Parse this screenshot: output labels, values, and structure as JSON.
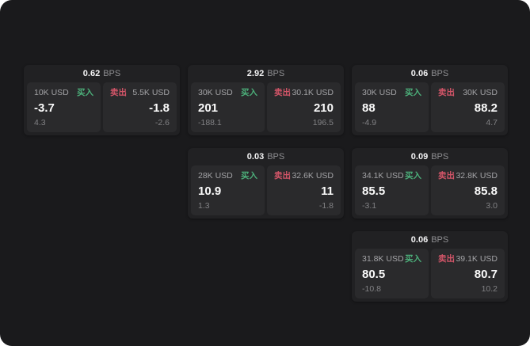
{
  "page": {
    "outer_bg": "#ffffff",
    "bg": "#1a1a1c",
    "card_bg": "#212123",
    "panel_bg": "#2a2a2c"
  },
  "labels": {
    "bps_suffix": "BPS",
    "buy": "买入",
    "sell": "卖出"
  },
  "colors": {
    "buy": "#4caf7a",
    "sell": "#d25568"
  },
  "cards": [
    {
      "row": 1,
      "col": 1,
      "spread_bps": "0.62",
      "buy": {
        "size": "10K USD",
        "value": "-3.7",
        "sub": "4.3"
      },
      "sell": {
        "size": "5.5K USD",
        "value": "-1.8",
        "sub": "-2.6"
      }
    },
    {
      "row": 1,
      "col": 2,
      "spread_bps": "2.92",
      "buy": {
        "size": "30K USD",
        "value": "201",
        "sub": "-188.1"
      },
      "sell": {
        "size": "30.1K USD",
        "value": "210",
        "sub": "196.5"
      }
    },
    {
      "row": 1,
      "col": 3,
      "spread_bps": "0.06",
      "buy": {
        "size": "30K USD",
        "value": "88",
        "sub": "-4.9"
      },
      "sell": {
        "size": "30K USD",
        "value": "88.2",
        "sub": "4.7"
      }
    },
    {
      "row": 2,
      "col": 2,
      "spread_bps": "0.03",
      "buy": {
        "size": "28K USD",
        "value": "10.9",
        "sub": "1.3"
      },
      "sell": {
        "size": "32.6K USD",
        "value": "11",
        "sub": "-1.8"
      }
    },
    {
      "row": 2,
      "col": 3,
      "spread_bps": "0.09",
      "buy": {
        "size": "34.1K USD",
        "value": "85.5",
        "sub": "-3.1"
      },
      "sell": {
        "size": "32.8K USD",
        "value": "85.8",
        "sub": "3.0"
      }
    },
    {
      "row": 3,
      "col": 3,
      "spread_bps": "0.06",
      "buy": {
        "size": "31.8K USD",
        "value": "80.5",
        "sub": "-10.8"
      },
      "sell": {
        "size": "39.1K USD",
        "value": "80.7",
        "sub": "10.2"
      }
    }
  ]
}
